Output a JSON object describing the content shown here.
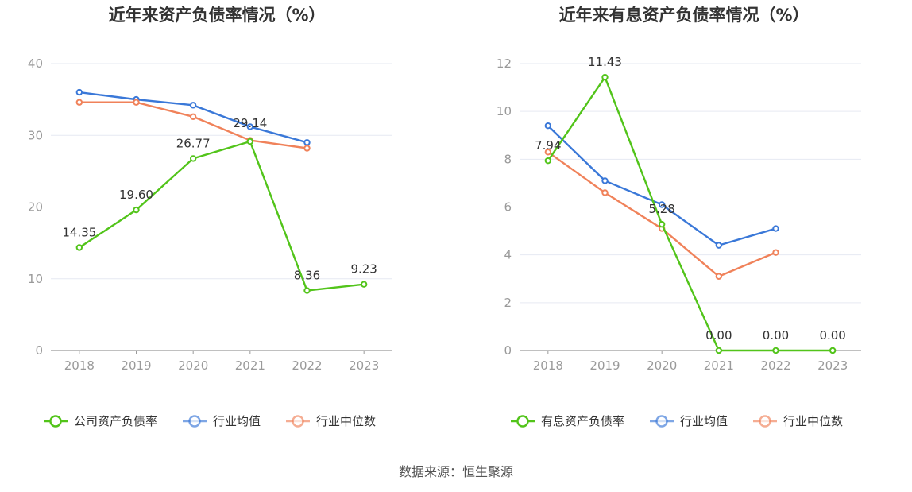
{
  "colors": {
    "company": "#52c41a",
    "industry_avg": "#3a78d8",
    "industry_median": "#f0825a",
    "grid": "#e6e9f2",
    "axis": "#9a9a9a"
  },
  "source_text": "数据来源：恒生聚源",
  "chart_data": [
    {
      "type": "line",
      "title": "近年来资产负债率情况（%）",
      "categories": [
        "2018",
        "2019",
        "2020",
        "2021",
        "2022",
        "2023"
      ],
      "ylim": [
        0,
        40
      ],
      "yticks": [
        0,
        10,
        20,
        30,
        40
      ],
      "grid": true,
      "legend_position": "bottom",
      "series": [
        {
          "name": "公司资产负债率",
          "color_key": "company",
          "values": [
            14.35,
            19.6,
            26.77,
            29.14,
            8.36,
            9.23
          ],
          "labels": [
            "14.35",
            "19.60",
            "26.77",
            "29.14",
            "8.36",
            "9.23"
          ]
        },
        {
          "name": "行业均值",
          "color_key": "industry_avg",
          "values": [
            36.0,
            35.0,
            34.2,
            31.2,
            29.0,
            null
          ]
        },
        {
          "name": "行业中位数",
          "color_key": "industry_median",
          "values": [
            34.6,
            34.6,
            32.6,
            29.3,
            28.2,
            null
          ]
        }
      ]
    },
    {
      "type": "line",
      "title": "近年来有息资产负债率情况（%）",
      "categories": [
        "2018",
        "2019",
        "2020",
        "2021",
        "2022",
        "2023"
      ],
      "ylim": [
        0,
        12
      ],
      "yticks": [
        0,
        2,
        4,
        6,
        8,
        10,
        12
      ],
      "grid": true,
      "legend_position": "bottom",
      "series": [
        {
          "name": "有息资产负债率",
          "color_key": "company",
          "values": [
            7.94,
            11.43,
            5.28,
            0.0,
            0.0,
            0.0
          ],
          "labels": [
            "7.94",
            "11.43",
            "5.28",
            "0.00",
            "0.00",
            "0.00"
          ]
        },
        {
          "name": "行业均值",
          "color_key": "industry_avg",
          "values": [
            9.4,
            7.1,
            6.1,
            4.4,
            5.1,
            null
          ]
        },
        {
          "name": "行业中位数",
          "color_key": "industry_median",
          "values": [
            8.3,
            6.6,
            5.1,
            3.1,
            4.1,
            null
          ]
        }
      ]
    }
  ]
}
